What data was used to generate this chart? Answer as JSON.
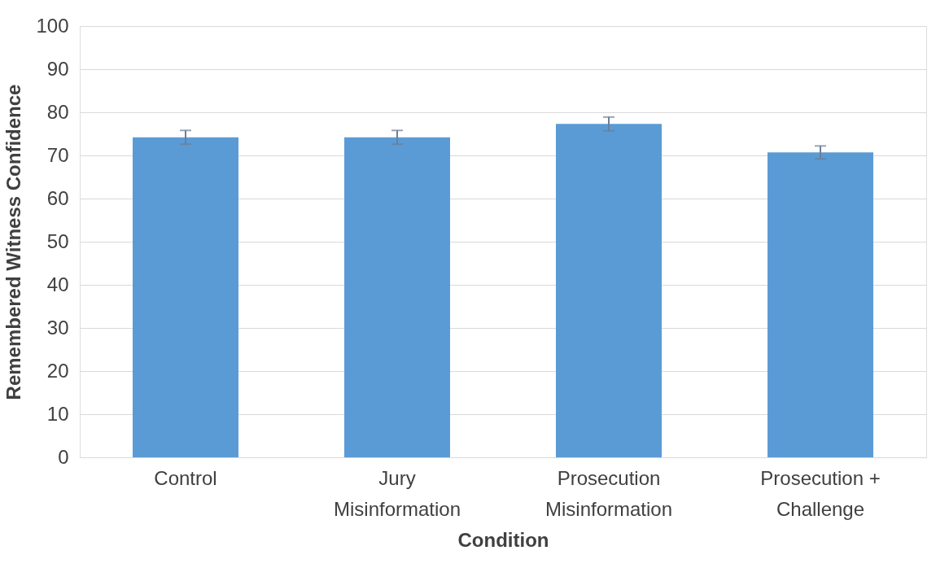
{
  "chart_data": {
    "type": "bar",
    "xlabel": "Condition",
    "ylabel": "Remembered Witness Confidence",
    "categories": [
      "Control",
      "Jury Misinformation",
      "Prosecution Misinformation",
      "Prosecution + Challenge"
    ],
    "values": [
      74.2,
      74.2,
      77.3,
      70.7
    ],
    "errors": [
      1.6,
      1.6,
      1.6,
      1.5
    ],
    "color": "#5b9bd5",
    "ylim": [
      0,
      100
    ],
    "yticks": [
      0,
      10,
      20,
      30,
      40,
      50,
      60,
      70,
      80,
      90,
      100
    ],
    "grid": "y"
  }
}
